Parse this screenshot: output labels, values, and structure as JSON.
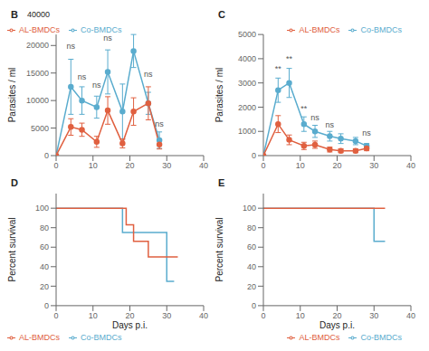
{
  "chart_data": [
    {
      "type": "line",
      "title": "B",
      "ylabel": "Parasites / ml",
      "xlim": [
        0,
        40
      ],
      "xticks": [
        0,
        10,
        20,
        30,
        40
      ],
      "ylim": [
        0,
        22000
      ],
      "yticks": [
        0,
        5000,
        10000,
        15000,
        20000
      ],
      "legend": "upper left",
      "grid": false,
      "series": [
        {
          "name": "Co-BMDCs",
          "color": "#5aacce",
          "marker": "circle",
          "x": [
            0,
            4,
            7,
            11,
            14,
            18,
            21,
            25,
            28
          ],
          "values": [
            0,
            12500,
            10000,
            8800,
            15200,
            8000,
            19000,
            9500,
            2800
          ],
          "errors": [
            0,
            5000,
            2500,
            2000,
            4000,
            5000,
            3000,
            2000,
            1500
          ]
        },
        {
          "name": "AL-BMDCs",
          "color": "#e06040",
          "marker": "circle",
          "x": [
            0,
            4,
            7,
            11,
            14,
            18,
            21,
            25,
            28
          ],
          "values": [
            0,
            5200,
            4700,
            2500,
            8200,
            2200,
            8000,
            9500,
            2000
          ],
          "errors": [
            0,
            1500,
            1200,
            1000,
            2500,
            800,
            2500,
            3000,
            800
          ]
        }
      ],
      "annotations": [
        {
          "x": 4,
          "y": 19000,
          "text": "ns"
        },
        {
          "x": 7,
          "y": 13500,
          "text": "ns"
        },
        {
          "x": 11,
          "y": 12000,
          "text": "ns"
        },
        {
          "x": 14,
          "y": 20500,
          "text": "ns"
        },
        {
          "x": 25,
          "y": 14000,
          "text": "ns"
        },
        {
          "x": 28,
          "y": 5000,
          "text": "ns"
        },
        {
          "text": "40000"
        }
      ]
    },
    {
      "type": "line",
      "title": "C",
      "ylabel": "Parasites / ml",
      "xlim": [
        0,
        40
      ],
      "xticks": [
        0,
        10,
        20,
        30,
        40
      ],
      "ylim": [
        0,
        5000
      ],
      "yticks": [
        0,
        1000,
        2000,
        3000,
        4000,
        5000
      ],
      "legend": "upper right",
      "grid": false,
      "series": [
        {
          "name": "Co-BMDCs",
          "color": "#5aacce",
          "marker": "circle",
          "x": [
            0,
            4,
            7,
            11,
            14,
            18,
            21,
            25,
            28
          ],
          "values": [
            0,
            2700,
            3000,
            1300,
            1000,
            800,
            700,
            600,
            400
          ],
          "errors": [
            0,
            500,
            600,
            300,
            250,
            200,
            200,
            150,
            100
          ]
        },
        {
          "name": "AL-BMDCs",
          "color": "#e06040",
          "marker": "circle",
          "x": [
            0,
            4,
            7,
            11,
            14,
            18,
            21,
            25,
            28
          ],
          "values": [
            0,
            1300,
            650,
            400,
            450,
            250,
            200,
            200,
            300
          ],
          "errors": [
            0,
            350,
            200,
            150,
            150,
            100,
            80,
            80,
            100
          ]
        }
      ],
      "annotations": [
        {
          "x": 4,
          "y": 3400,
          "text": "**"
        },
        {
          "x": 7,
          "y": 3800,
          "text": "**"
        },
        {
          "x": 11,
          "y": 1750,
          "text": "**"
        },
        {
          "x": 14,
          "y": 1400,
          "text": "ns"
        },
        {
          "x": 18,
          "y": 1100,
          "text": "ns"
        },
        {
          "x": 28,
          "y": 750,
          "text": "ns"
        }
      ]
    },
    {
      "type": "step",
      "title": "D",
      "ylabel": "Percent survival",
      "xlabel": "Days p.i.",
      "xlim": [
        0,
        40
      ],
      "xticks": [
        0,
        10,
        20,
        30,
        40
      ],
      "ylim": [
        0,
        115
      ],
      "yticks": [
        0,
        20,
        40,
        60,
        80,
        100
      ],
      "legend": "lower left",
      "grid": false,
      "series": [
        {
          "name": "Co-BMDCs",
          "color": "#5aacce",
          "x": [
            0,
            18,
            18,
            19,
            19,
            30,
            30,
            32,
            32
          ],
          "values": [
            100,
            100,
            75,
            75,
            75,
            75,
            25,
            25,
            25
          ]
        },
        {
          "name": "AL-BMDCs",
          "color": "#e06040",
          "x": [
            0,
            19,
            19,
            21,
            21,
            25,
            25,
            30,
            30,
            33
          ],
          "values": [
            100,
            100,
            83,
            83,
            66,
            66,
            50,
            50,
            50,
            50
          ]
        }
      ]
    },
    {
      "type": "step",
      "title": "E",
      "ylabel": "Percent survival",
      "xlabel": "Days p.i.",
      "xlim": [
        0,
        40
      ],
      "xticks": [
        0,
        10,
        20,
        30,
        40
      ],
      "ylim": [
        0,
        115
      ],
      "yticks": [
        0,
        20,
        40,
        60,
        80,
        100
      ],
      "legend": "lower right",
      "grid": false,
      "series": [
        {
          "name": "Co-BMDCs",
          "color": "#5aacce",
          "x": [
            0,
            30,
            30,
            33,
            33
          ],
          "values": [
            100,
            100,
            66,
            66,
            66
          ]
        },
        {
          "name": "AL-BMDCs",
          "color": "#e06040",
          "x": [
            0,
            33,
            33
          ],
          "values": [
            100,
            100,
            100
          ]
        }
      ]
    }
  ]
}
